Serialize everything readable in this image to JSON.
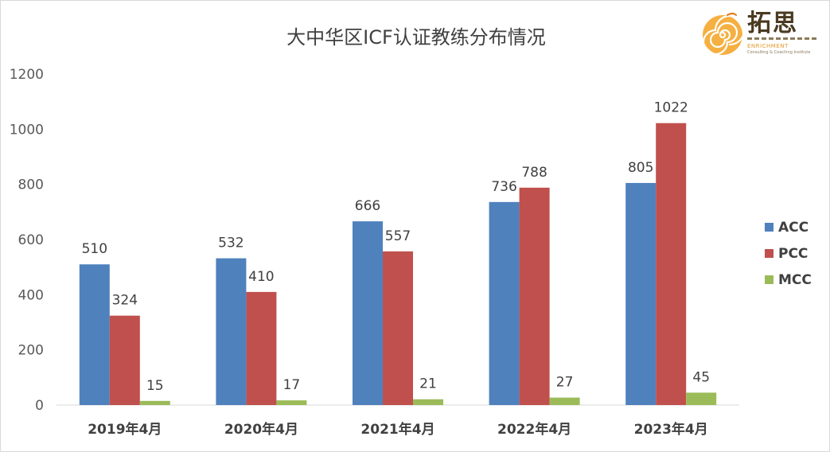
{
  "chart_data": {
    "type": "bar",
    "title": "大中华区ICF认证教练分布情况",
    "categories": [
      "2019年4月",
      "2020年4月",
      "2021年4月",
      "2022年4月",
      "2023年4月"
    ],
    "series": [
      {
        "name": "ACC",
        "color": "#4f81bd",
        "values": [
          510,
          532,
          666,
          736,
          805
        ]
      },
      {
        "name": "PCC",
        "color": "#c0504d",
        "values": [
          324,
          410,
          557,
          788,
          1022
        ]
      },
      {
        "name": "MCC",
        "color": "#9bbb59",
        "values": [
          15,
          17,
          21,
          27,
          45
        ]
      }
    ],
    "ylim": [
      0,
      1200
    ],
    "yticks": [
      0,
      200,
      400,
      600,
      800,
      1000,
      1200
    ],
    "xlabel": "",
    "ylabel": "",
    "grid": false,
    "legend_position": "right"
  },
  "logo": {
    "cn_text": "拓思",
    "en_text": "ENRICHMENT",
    "tagline": "Consulting & Coaching Institute"
  }
}
